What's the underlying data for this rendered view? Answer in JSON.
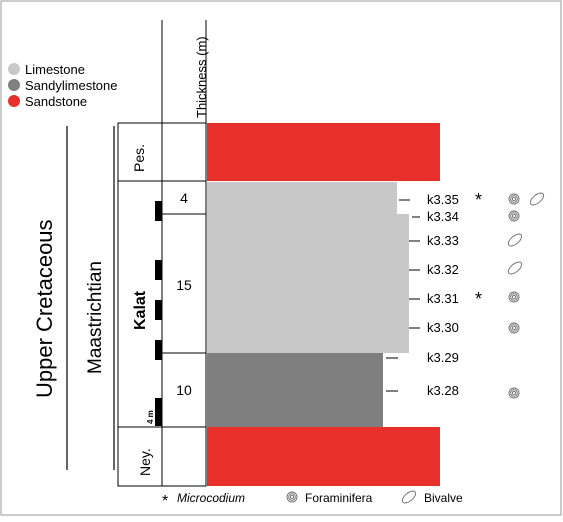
{
  "legend": {
    "items": [
      {
        "label": "Limestone",
        "color": "#c8c8c8"
      },
      {
        "label": "Sandylimestone",
        "color": "#7f7f7f"
      },
      {
        "label": "Sandstone",
        "color": "#e8302b"
      }
    ]
  },
  "column_headers": {
    "thickness": "Thickness (m)"
  },
  "stratigraphy": {
    "system": "Upper Cretaceous",
    "stage": "Maastrichtian",
    "formations": [
      {
        "name": "Pes.",
        "lithology": "Sandstone"
      },
      {
        "name": "Kalat",
        "lithology": "Limestone / Sandylimestone"
      },
      {
        "name": "Ney.",
        "lithology": "Sandstone"
      }
    ],
    "thickness_values": [
      "4",
      "15",
      "10"
    ],
    "scale_label": "4 m"
  },
  "samples": [
    {
      "id": "k3.35",
      "microcodium": true,
      "foraminifera": true,
      "bivalve": true
    },
    {
      "id": "k3.34",
      "microcodium": false,
      "foraminifera": true,
      "bivalve": false
    },
    {
      "id": "k3.33",
      "microcodium": false,
      "foraminifera": false,
      "bivalve": true
    },
    {
      "id": "k3.32",
      "microcodium": false,
      "foraminifera": false,
      "bivalve": true
    },
    {
      "id": "k3.31",
      "microcodium": true,
      "foraminifera": true,
      "bivalve": false
    },
    {
      "id": "k3.30",
      "microcodium": false,
      "foraminifera": true,
      "bivalve": false
    },
    {
      "id": "k3.29",
      "microcodium": false,
      "foraminifera": false,
      "bivalve": false
    },
    {
      "id": "k3.28",
      "microcodium": false,
      "foraminifera": true,
      "bivalve": false
    }
  ],
  "fossil_legend": {
    "microcodium": "Microcodium",
    "foraminifera": "Foraminifera",
    "bivalve": "Bivalve"
  },
  "symbols": {
    "microcodium": "asterisk-icon",
    "foraminifera": "spiral-icon",
    "bivalve": "shell-outline-icon"
  },
  "colors": {
    "limestone": "#c8c8c8",
    "sandylimestone": "#7f7f7f",
    "sandstone": "#e8302b",
    "line": "#000000",
    "symbol": "#6a6a6a"
  }
}
